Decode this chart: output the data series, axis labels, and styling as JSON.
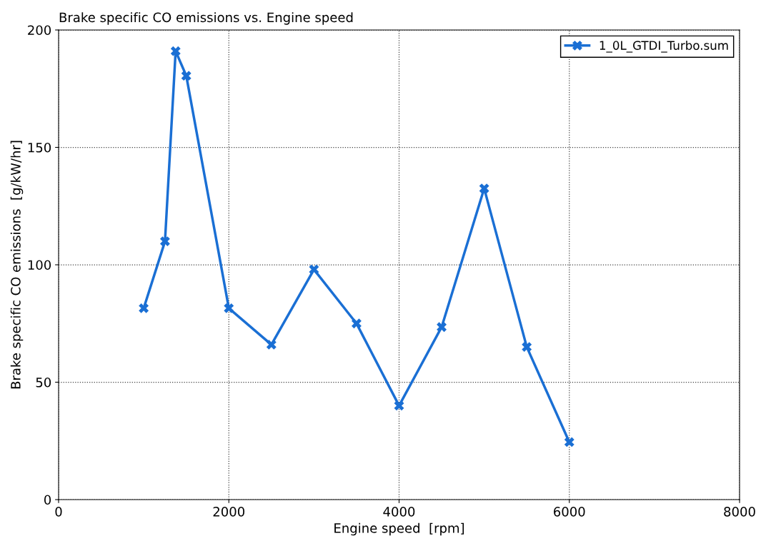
{
  "chart_data": {
    "type": "line",
    "title": "Brake specific CO emissions vs. Engine speed",
    "xlabel": "Engine speed  [rpm]",
    "ylabel": "Brake specific CO emissions  [g/kW/hr]",
    "x": [
      1000,
      1250,
      1375,
      1500,
      2000,
      2500,
      3000,
      3500,
      4000,
      4500,
      5000,
      5500,
      6000
    ],
    "series": [
      {
        "name": "1_0L_GTDI_Turbo.sum",
        "color": "#1a6fd4",
        "values": [
          81.5,
          110,
          191,
          180.5,
          81.5,
          66,
          98,
          75,
          40,
          73.5,
          132.5,
          65,
          24.5
        ]
      }
    ],
    "xlim": [
      0,
      8000
    ],
    "xticks": [
      0,
      2000,
      4000,
      6000,
      8000
    ],
    "ylim": [
      0,
      200
    ],
    "yticks": [
      0,
      50,
      100,
      150,
      200
    ],
    "grid": true,
    "legend": "top right",
    "marker": "cross",
    "line_style": "solid"
  }
}
